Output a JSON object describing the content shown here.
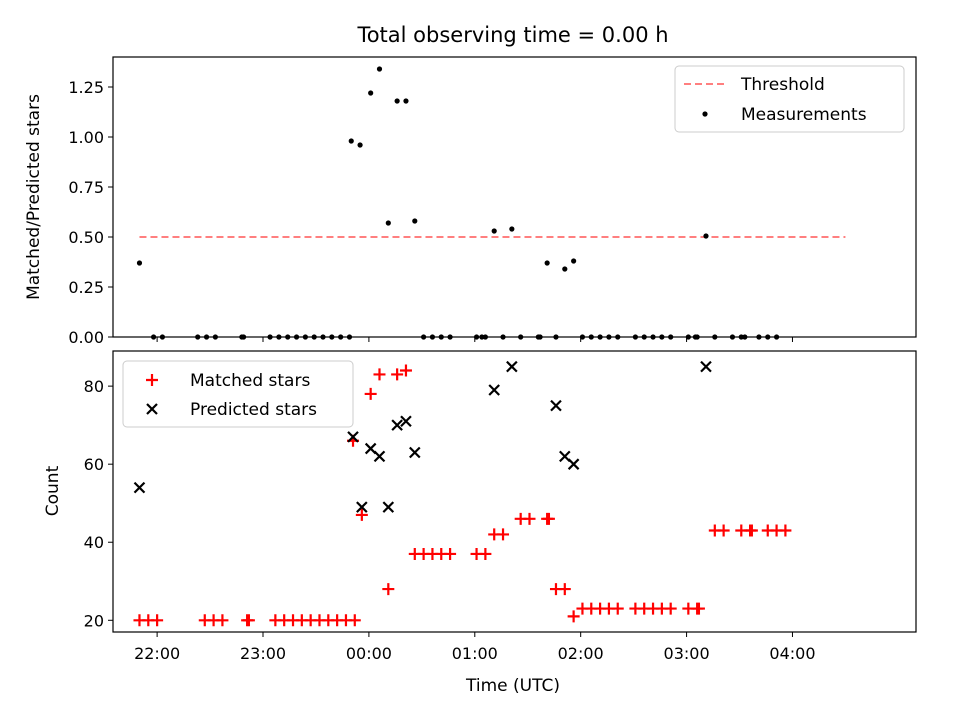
{
  "figure": {
    "title": "Total observing time = 0.00 h",
    "xlabel": "Time (UTC)"
  },
  "chart_data": [
    {
      "type": "scatter",
      "ylabel": "Matched/Predicted stars",
      "xlim": [
        -145,
        310
      ],
      "ylim": [
        0,
        1.4
      ],
      "yticks": [
        0.0,
        0.25,
        0.5,
        0.75,
        1.0,
        1.25
      ],
      "ytick_labels": [
        "0.00",
        "0.25",
        "0.50",
        "0.75",
        "1.00",
        "1.25"
      ],
      "legend_position": "upper right",
      "threshold": {
        "name": "Threshold",
        "value": 0.5,
        "x_range": [
          -130,
          270
        ],
        "color": "#ff7f7f"
      },
      "series": [
        {
          "name": "Measurements",
          "color": "#000000",
          "marker": "dot",
          "points": [
            [
              -130,
              0.37
            ],
            [
              -122,
              0.0
            ],
            [
              -117,
              0.0
            ],
            [
              -97,
              0.0
            ],
            [
              -92,
              0.0
            ],
            [
              -87,
              0.0
            ],
            [
              -72,
              0.0
            ],
            [
              -71,
              0.0
            ],
            [
              -56,
              0.0
            ],
            [
              -51,
              0.0
            ],
            [
              -46,
              0.0
            ],
            [
              -41,
              0.0
            ],
            [
              -36,
              0.0
            ],
            [
              -31,
              0.0
            ],
            [
              -26,
              0.0
            ],
            [
              -21,
              0.0
            ],
            [
              -16,
              0.0
            ],
            [
              -11,
              0.0
            ],
            [
              -10,
              0.98
            ],
            [
              -5,
              0.96
            ],
            [
              1,
              1.22
            ],
            [
              6,
              1.34
            ],
            [
              11,
              0.57
            ],
            [
              16,
              1.18
            ],
            [
              21,
              1.18
            ],
            [
              26,
              0.58
            ],
            [
              31,
              0.0
            ],
            [
              36,
              0.0
            ],
            [
              41,
              0.0
            ],
            [
              46,
              0.0
            ],
            [
              61,
              0.0
            ],
            [
              64,
              0.0
            ],
            [
              66,
              0.0
            ],
            [
              71,
              0.53
            ],
            [
              76,
              0.0
            ],
            [
              81,
              0.54
            ],
            [
              86,
              0.0
            ],
            [
              96,
              0.0
            ],
            [
              97,
              0.0
            ],
            [
              101,
              0.37
            ],
            [
              106,
              0.0
            ],
            [
              111,
              0.34
            ],
            [
              116,
              0.38
            ],
            [
              121,
              0.0
            ],
            [
              126,
              0.0
            ],
            [
              131,
              0.0
            ],
            [
              136,
              0.0
            ],
            [
              141,
              0.0
            ],
            [
              151,
              0.0
            ],
            [
              156,
              0.0
            ],
            [
              161,
              0.0
            ],
            [
              166,
              0.0
            ],
            [
              171,
              0.0
            ],
            [
              181,
              0.0
            ],
            [
              185,
              0.0
            ],
            [
              186,
              0.0
            ],
            [
              191,
              0.505
            ],
            [
              196,
              0.0
            ],
            [
              206,
              0.0
            ],
            [
              211,
              0.0
            ],
            [
              213,
              0.0
            ],
            [
              221,
              0.0
            ],
            [
              226,
              0.0
            ],
            [
              231,
              0.0
            ]
          ]
        }
      ]
    },
    {
      "type": "scatter",
      "ylabel": "Count",
      "xlim": [
        -145,
        310
      ],
      "ylim": [
        17,
        89
      ],
      "yticks": [
        20,
        40,
        60,
        80
      ],
      "ytick_labels": [
        "20",
        "40",
        "60",
        "80"
      ],
      "xticks": [
        -120,
        -60,
        0,
        60,
        120,
        180,
        240
      ],
      "xtick_labels": [
        "22:00",
        "23:00",
        "00:00",
        "01:00",
        "02:00",
        "03:00",
        "04:00"
      ],
      "legend_position": "upper left",
      "series": [
        {
          "name": "Matched stars",
          "color": "#ff0000",
          "marker": "plus",
          "points": [
            [
              -130,
              20
            ],
            [
              -125,
              20
            ],
            [
              -120,
              20
            ],
            [
              -93,
              20
            ],
            [
              -88,
              20
            ],
            [
              -83,
              20
            ],
            [
              -69,
              20
            ],
            [
              -68,
              20
            ],
            [
              -53,
              20
            ],
            [
              -48,
              20
            ],
            [
              -43,
              20
            ],
            [
              -38,
              20
            ],
            [
              -33,
              20
            ],
            [
              -28,
              20
            ],
            [
              -23,
              20
            ],
            [
              -18,
              20
            ],
            [
              -13,
              20
            ],
            [
              -8,
              20
            ],
            [
              -9,
              66
            ],
            [
              -4,
              47
            ],
            [
              1,
              78
            ],
            [
              6,
              83
            ],
            [
              11,
              28
            ],
            [
              16,
              83
            ],
            [
              21,
              84
            ],
            [
              26,
              37
            ],
            [
              31,
              37
            ],
            [
              36,
              37
            ],
            [
              41,
              37
            ],
            [
              46,
              37
            ],
            [
              61,
              37
            ],
            [
              66,
              37
            ],
            [
              71,
              42
            ],
            [
              76,
              42
            ],
            [
              86,
              46
            ],
            [
              91,
              46
            ],
            [
              101,
              46
            ],
            [
              102,
              46
            ],
            [
              106,
              28
            ],
            [
              111,
              28
            ],
            [
              116,
              21
            ],
            [
              121,
              23
            ],
            [
              126,
              23
            ],
            [
              131,
              23
            ],
            [
              136,
              23
            ],
            [
              141,
              23
            ],
            [
              151,
              23
            ],
            [
              156,
              23
            ],
            [
              161,
              23
            ],
            [
              166,
              23
            ],
            [
              171,
              23
            ],
            [
              181,
              23
            ],
            [
              186,
              23
            ],
            [
              187,
              23
            ],
            [
              196,
              43
            ],
            [
              201,
              43
            ],
            [
              211,
              43
            ],
            [
              216,
              43
            ],
            [
              217,
              43
            ],
            [
              226,
              43
            ],
            [
              231,
              43
            ],
            [
              236,
              43
            ]
          ]
        },
        {
          "name": "Predicted stars",
          "color": "#000000",
          "marker": "x",
          "points": [
            [
              -130,
              54
            ],
            [
              -9,
              67
            ],
            [
              -4,
              49
            ],
            [
              1,
              64
            ],
            [
              6,
              62
            ],
            [
              11,
              49
            ],
            [
              16,
              70
            ],
            [
              21,
              71
            ],
            [
              26,
              63
            ],
            [
              71,
              79
            ],
            [
              81,
              85
            ],
            [
              106,
              75
            ],
            [
              111,
              62
            ],
            [
              116,
              60
            ],
            [
              191,
              85
            ]
          ]
        }
      ]
    }
  ]
}
